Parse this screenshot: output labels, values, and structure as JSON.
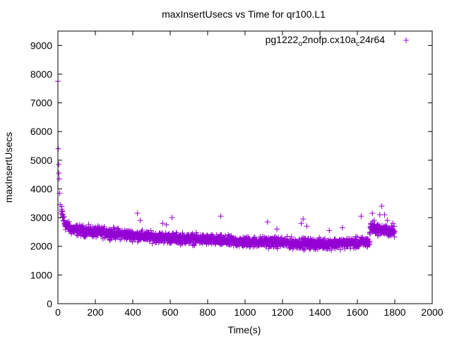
{
  "chart_data": {
    "type": "scatter",
    "title": "maxInsertUsecs vs Time for qr100.L1",
    "xlabel": "Time(s)",
    "ylabel": "maxInsertUsecs",
    "xlim": [
      0,
      2000
    ],
    "ylim": [
      0,
      9500
    ],
    "xticks": [
      0,
      200,
      400,
      600,
      800,
      1000,
      1200,
      1400,
      1600,
      1800,
      2000
    ],
    "yticks": [
      0,
      1000,
      2000,
      3000,
      4000,
      5000,
      6000,
      7000,
      8000,
      9000
    ],
    "marker": "+",
    "grid": false,
    "legend_position": "top-right",
    "series": [
      {
        "name": "pg1222_o2nofp.cx10a_c24r64",
        "legend_parts": {
          "base": "pg1222",
          "sub1": "o",
          "mid": "2nofp.cx10a",
          "sub2": "c",
          "end": "24r64"
        },
        "color": "#9400d3",
        "trend": [
          [
            0,
            7750
          ],
          [
            3,
            5400
          ],
          [
            6,
            4600
          ],
          [
            10,
            4000
          ],
          [
            15,
            3500
          ],
          [
            25,
            3050
          ],
          [
            40,
            2750
          ],
          [
            70,
            2600
          ],
          [
            120,
            2550
          ],
          [
            200,
            2500
          ],
          [
            300,
            2450
          ],
          [
            400,
            2380
          ],
          [
            500,
            2330
          ],
          [
            600,
            2290
          ],
          [
            700,
            2260
          ],
          [
            800,
            2230
          ],
          [
            900,
            2180
          ],
          [
            1000,
            2150
          ],
          [
            1100,
            2150
          ],
          [
            1200,
            2130
          ],
          [
            1300,
            2100
          ],
          [
            1400,
            2080
          ],
          [
            1500,
            2100
          ],
          [
            1600,
            2120
          ],
          [
            1665,
            2150
          ],
          [
            1670,
            2700
          ],
          [
            1700,
            2600
          ],
          [
            1750,
            2550
          ],
          [
            1800,
            2500
          ]
        ],
        "outliers": [
          [
            0,
            7750
          ],
          [
            2,
            5400
          ],
          [
            4,
            4850
          ],
          [
            5,
            4550
          ],
          [
            7,
            4350
          ],
          [
            9,
            3850
          ],
          [
            12,
            3450
          ],
          [
            18,
            3150
          ],
          [
            425,
            3150
          ],
          [
            440,
            2900
          ],
          [
            560,
            2800
          ],
          [
            580,
            2750
          ],
          [
            610,
            3000
          ],
          [
            870,
            3050
          ],
          [
            1120,
            2850
          ],
          [
            1170,
            2600
          ],
          [
            1300,
            2800
          ],
          [
            1310,
            2950
          ],
          [
            1330,
            2700
          ],
          [
            1450,
            2550
          ],
          [
            1520,
            2650
          ],
          [
            1620,
            3050
          ],
          [
            1680,
            3150
          ],
          [
            1690,
            2900
          ],
          [
            1720,
            3100
          ],
          [
            1730,
            3400
          ],
          [
            1745,
            3100
          ],
          [
            1760,
            2900
          ],
          [
            1790,
            2800
          ]
        ],
        "point_count": 1800,
        "spread": 160
      }
    ]
  }
}
